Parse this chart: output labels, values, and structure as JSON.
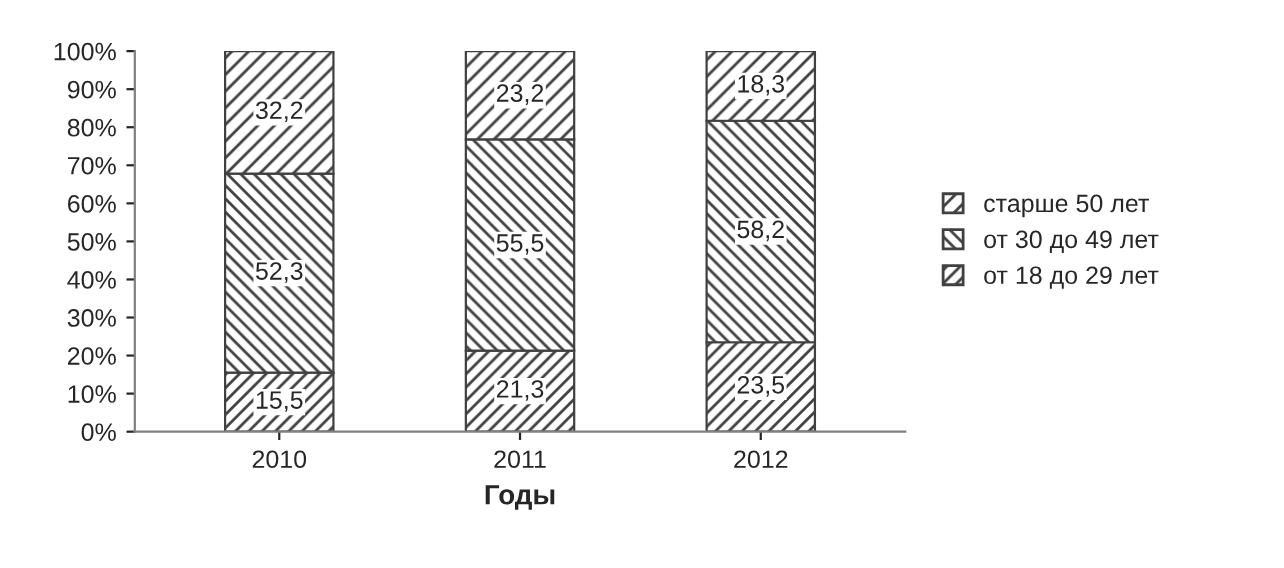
{
  "chart_data": {
    "type": "bar",
    "stacked": true,
    "xlabel": "Годы",
    "categories": [
      "2010",
      "2011",
      "2012"
    ],
    "series": [
      {
        "name": "от 18 до 29 лет",
        "color": "#404040",
        "values": [
          15.5,
          21.3,
          23.5
        ],
        "value_labels": [
          "15,5",
          "21,3",
          "23,5"
        ]
      },
      {
        "name": "от 30 до 49 лет",
        "color": "#404040",
        "values": [
          52.3,
          55.5,
          58.2
        ],
        "value_labels": [
          "52,3",
          "55,5",
          "58,2"
        ]
      },
      {
        "name": "старше 50 лет",
        "color": "#404040",
        "values": [
          32.2,
          23.2,
          18.3
        ],
        "value_labels": [
          "32,2",
          "23,2",
          "18,3"
        ]
      }
    ],
    "ylim": [
      0,
      100
    ],
    "yticks": [
      {
        "value": 0,
        "label": "0%"
      },
      {
        "value": 10,
        "label": "10%"
      },
      {
        "value": 20,
        "label": "20%"
      },
      {
        "value": 30,
        "label": "30%"
      },
      {
        "value": 40,
        "label": "40%"
      },
      {
        "value": 50,
        "label": "50%"
      },
      {
        "value": 60,
        "label": "60%"
      },
      {
        "value": 70,
        "label": "70%"
      },
      {
        "value": 80,
        "label": "80%"
      },
      {
        "value": 90,
        "label": "90%"
      },
      {
        "value": 100,
        "label": "100%"
      }
    ],
    "grid": false,
    "legend": "right"
  }
}
